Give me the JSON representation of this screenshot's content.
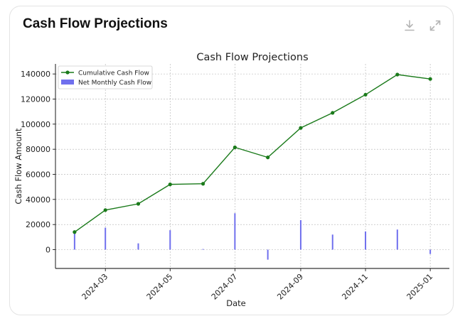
{
  "card": {
    "title": "Cash Flow Projections",
    "download_icon": "download-icon",
    "expand_icon": "expand-icon"
  },
  "chart_data": {
    "type": "line+bar",
    "title": "Cash Flow Projections",
    "xlabel": "Date",
    "ylabel": "Cash Flow Amount",
    "x": [
      "2024-02-01",
      "2024-03-01",
      "2024-04-01",
      "2024-05-01",
      "2024-06-01",
      "2024-07-01",
      "2024-08-01",
      "2024-09-01",
      "2024-10-01",
      "2024-11-01",
      "2024-12-01",
      "2025-01-01"
    ],
    "series": [
      {
        "name": "Cumulative Cash Flow",
        "kind": "line",
        "color": "#1a7a1a",
        "values": [
          14000,
          31500,
          36500,
          52000,
          52500,
          81500,
          73500,
          97000,
          109000,
          123500,
          139500,
          136000
        ]
      },
      {
        "name": "Net Monthly Cash Flow",
        "kind": "bar",
        "color": "#7070ee",
        "values": [
          14000,
          17500,
          5000,
          15500,
          500,
          29000,
          -8000,
          23500,
          12000,
          14500,
          16000,
          -3500
        ]
      }
    ],
    "xticks": [
      "2024-03",
      "2024-05",
      "2024-07",
      "2024-09",
      "2024-11",
      "2025-01"
    ],
    "yticks": [
      "0",
      "20000",
      "40000",
      "60000",
      "80000",
      "100000",
      "120000",
      "140000"
    ],
    "ylim": [
      -15000,
      148000
    ],
    "xlim": [
      "2024-01-14",
      "2025-01-19"
    ],
    "grid": true,
    "legend": "top-left"
  }
}
